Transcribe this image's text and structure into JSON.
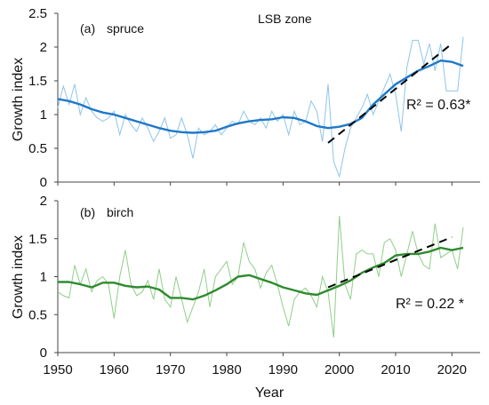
{
  "chart_data": [
    {
      "type": "line",
      "panel": "(a)",
      "species": "spruce",
      "zone_label": "LSB zone",
      "ylabel": "Growth index",
      "xlabel": "",
      "xlim": [
        1950,
        2025
      ],
      "ylim": [
        0,
        2.5
      ],
      "yticks": [
        "0",
        "0.5",
        "1",
        "1.5",
        "2",
        "2.5"
      ],
      "xticks": [],
      "annotation": "R² = 0.63*",
      "colors": {
        "raw": "#8ec5ea",
        "smooth": "#1f78c8",
        "trend": "#000000"
      },
      "series": [
        {
          "kind": "raw",
          "x": [
            1950,
            1951,
            1952,
            1953,
            1954,
            1955,
            1956,
            1957,
            1958,
            1959,
            1960,
            1961,
            1962,
            1963,
            1964,
            1965,
            1966,
            1967,
            1968,
            1969,
            1970,
            1971,
            1972,
            1973,
            1974,
            1975,
            1976,
            1977,
            1978,
            1979,
            1980,
            1981,
            1982,
            1983,
            1984,
            1985,
            1986,
            1987,
            1988,
            1989,
            1990,
            1991,
            1992,
            1993,
            1994,
            1995,
            1996,
            1997,
            1998,
            1999,
            2000,
            2001,
            2002,
            2003,
            2004,
            2005,
            2006,
            2007,
            2008,
            2009,
            2010,
            2011,
            2012,
            2013,
            2014,
            2015,
            2016,
            2017,
            2018,
            2019,
            2020,
            2021,
            2022
          ],
          "values": [
            1.1,
            1.42,
            1.15,
            1.45,
            1.0,
            1.25,
            1.05,
            0.95,
            0.9,
            0.95,
            1.05,
            0.7,
            1.0,
            0.85,
            0.75,
            0.95,
            0.8,
            0.6,
            0.75,
            0.95,
            0.65,
            0.7,
            0.95,
            0.7,
            0.35,
            0.8,
            0.7,
            0.75,
            0.85,
            0.7,
            0.8,
            0.9,
            0.85,
            1.05,
            0.9,
            0.85,
            0.95,
            0.8,
            1.05,
            0.9,
            1.0,
            0.7,
            1.05,
            0.85,
            0.9,
            1.2,
            1.05,
            0.6,
            1.45,
            0.3,
            0.08,
            0.5,
            0.8,
            0.95,
            1.1,
            1.3,
            1.0,
            1.2,
            1.4,
            1.6,
            1.3,
            0.75,
            1.7,
            2.1,
            2.1,
            1.75,
            2.05,
            1.65,
            2.05,
            1.35,
            1.35,
            1.35,
            2.15
          ]
        },
        {
          "kind": "smooth",
          "x": [
            1950,
            1952,
            1954,
            1956,
            1958,
            1960,
            1962,
            1964,
            1966,
            1968,
            1970,
            1972,
            1974,
            1976,
            1978,
            1980,
            1982,
            1984,
            1986,
            1988,
            1990,
            1992,
            1994,
            1996,
            1998,
            2000,
            2002,
            2004,
            2006,
            2008,
            2010,
            2012,
            2014,
            2016,
            2018,
            2020,
            2022
          ],
          "values": [
            1.23,
            1.2,
            1.15,
            1.08,
            1.03,
            1.0,
            0.95,
            0.9,
            0.85,
            0.8,
            0.76,
            0.74,
            0.73,
            0.74,
            0.76,
            0.82,
            0.87,
            0.9,
            0.92,
            0.93,
            0.96,
            0.95,
            0.9,
            0.83,
            0.8,
            0.82,
            0.86,
            0.95,
            1.15,
            1.3,
            1.45,
            1.55,
            1.65,
            1.72,
            1.8,
            1.78,
            1.72
          ]
        },
        {
          "kind": "trend",
          "x": [
            1998,
            2020
          ],
          "values": [
            0.58,
            2.05
          ]
        }
      ]
    },
    {
      "type": "line",
      "panel": "(b)",
      "species": "birch",
      "ylabel": "Growth index",
      "xlabel": "Year",
      "xlim": [
        1950,
        2025
      ],
      "ylim": [
        0,
        2
      ],
      "yticks": [
        "0",
        "0.5",
        "1",
        "1.5",
        "2"
      ],
      "xticks": [
        "1950",
        "1960",
        "1970",
        "1980",
        "1990",
        "2000",
        "2010",
        "2020"
      ],
      "annotation": "R² = 0.22 *",
      "colors": {
        "raw": "#8fcf87",
        "smooth": "#2e8b2e",
        "trend": "#000000"
      },
      "series": [
        {
          "kind": "raw",
          "x": [
            1950,
            1951,
            1952,
            1953,
            1954,
            1955,
            1956,
            1957,
            1958,
            1959,
            1960,
            1961,
            1962,
            1963,
            1964,
            1965,
            1966,
            1967,
            1968,
            1969,
            1970,
            1971,
            1972,
            1973,
            1974,
            1975,
            1976,
            1977,
            1978,
            1979,
            1980,
            1981,
            1982,
            1983,
            1984,
            1985,
            1986,
            1987,
            1988,
            1989,
            1990,
            1991,
            1992,
            1993,
            1994,
            1995,
            1996,
            1997,
            1998,
            1999,
            2000,
            2001,
            2002,
            2003,
            2004,
            2005,
            2006,
            2007,
            2008,
            2009,
            2010,
            2011,
            2012,
            2013,
            2014,
            2015,
            2016,
            2017,
            2018,
            2019,
            2020,
            2021,
            2022
          ],
          "values": [
            0.8,
            0.75,
            0.72,
            1.15,
            0.9,
            1.1,
            0.8,
            0.95,
            1.0,
            0.9,
            0.45,
            1.0,
            1.35,
            0.9,
            0.75,
            0.8,
            0.95,
            0.7,
            1.1,
            0.7,
            0.6,
            1.0,
            0.7,
            0.4,
            0.6,
            0.8,
            1.1,
            0.6,
            1.0,
            1.1,
            1.2,
            0.9,
            1.0,
            1.45,
            1.2,
            1.1,
            0.85,
            1.05,
            1.15,
            0.9,
            0.6,
            0.35,
            0.7,
            0.8,
            0.85,
            0.75,
            0.6,
            1.0,
            0.8,
            0.2,
            1.8,
            0.9,
            0.7,
            1.3,
            1.35,
            1.3,
            1.3,
            1.0,
            1.45,
            1.5,
            1.35,
            1.0,
            1.3,
            1.6,
            1.3,
            1.15,
            1.1,
            1.7,
            1.25,
            1.3,
            1.35,
            1.1,
            1.65
          ]
        },
        {
          "kind": "smooth",
          "x": [
            1950,
            1952,
            1954,
            1956,
            1958,
            1960,
            1962,
            1964,
            1966,
            1968,
            1970,
            1972,
            1974,
            1976,
            1978,
            1980,
            1982,
            1984,
            1986,
            1988,
            1990,
            1992,
            1994,
            1996,
            1998,
            2000,
            2002,
            2004,
            2006,
            2008,
            2010,
            2012,
            2014,
            2016,
            2018,
            2020,
            2022
          ],
          "values": [
            0.93,
            0.93,
            0.9,
            0.86,
            0.92,
            0.92,
            0.88,
            0.86,
            0.87,
            0.83,
            0.72,
            0.72,
            0.7,
            0.75,
            0.82,
            0.9,
            1.0,
            1.02,
            0.97,
            0.92,
            0.86,
            0.82,
            0.78,
            0.76,
            0.82,
            0.88,
            0.95,
            1.05,
            1.12,
            1.18,
            1.28,
            1.3,
            1.3,
            1.33,
            1.38,
            1.35,
            1.38
          ]
        },
        {
          "kind": "trend",
          "x": [
            1998,
            2020
          ],
          "values": [
            0.86,
            1.52
          ]
        }
      ]
    }
  ]
}
